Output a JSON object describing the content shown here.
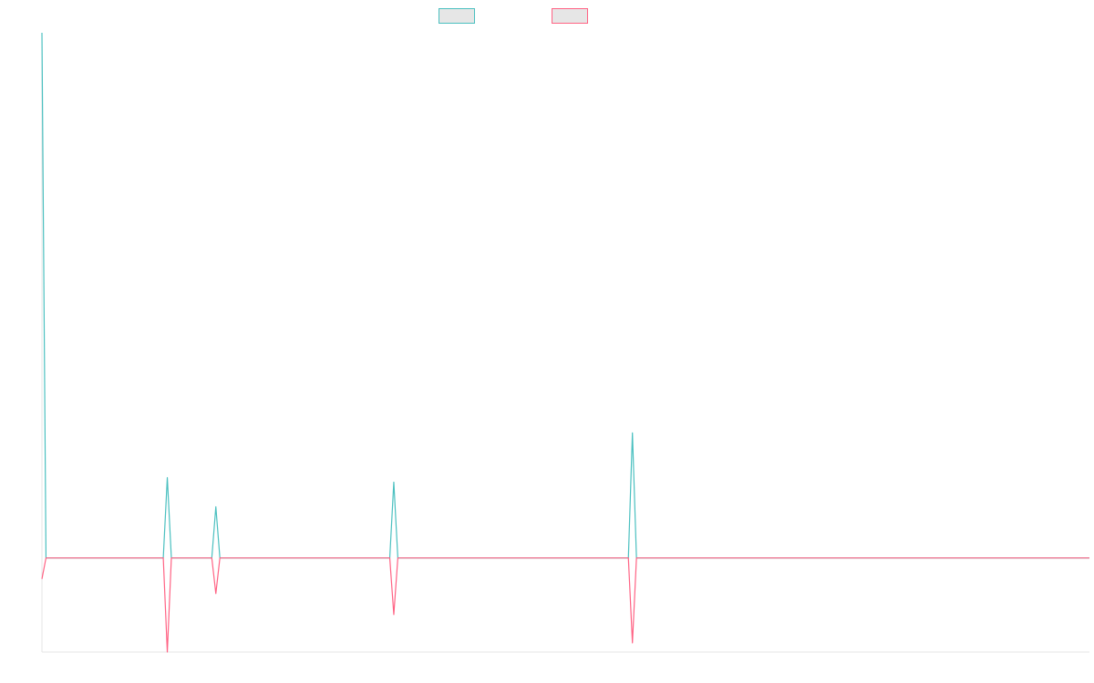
{
  "chart_data": {
    "type": "line",
    "title": "",
    "xlabel": "",
    "ylabel": "",
    "x_count": 260,
    "ylim": [
      -103,
      575
    ],
    "grid": false,
    "legend_placement": "top",
    "series": [
      {
        "name": "",
        "color": "#4bc0c0",
        "fill": "#e6e6e6",
        "points": [
          {
            "x": 0,
            "y": 575
          },
          {
            "x": 1,
            "y": 0
          },
          {
            "x": 30,
            "y": 0
          },
          {
            "x": 31,
            "y": 88
          },
          {
            "x": 32,
            "y": 0
          },
          {
            "x": 42,
            "y": 0
          },
          {
            "x": 43,
            "y": 56
          },
          {
            "x": 44,
            "y": 0
          },
          {
            "x": 86,
            "y": 0
          },
          {
            "x": 87,
            "y": 83
          },
          {
            "x": 88,
            "y": 0
          },
          {
            "x": 145,
            "y": 0
          },
          {
            "x": 146,
            "y": 137
          },
          {
            "x": 147,
            "y": 0
          },
          {
            "x": 259,
            "y": 0
          }
        ]
      },
      {
        "name": "",
        "color": "#ff6384",
        "fill": "#e6e6e6",
        "points": [
          {
            "x": 0,
            "y": -23
          },
          {
            "x": 1,
            "y": 0
          },
          {
            "x": 30,
            "y": 0
          },
          {
            "x": 31,
            "y": -103
          },
          {
            "x": 32,
            "y": 0
          },
          {
            "x": 42,
            "y": 0
          },
          {
            "x": 43,
            "y": -39
          },
          {
            "x": 44,
            "y": 0
          },
          {
            "x": 86,
            "y": 0
          },
          {
            "x": 87,
            "y": -62
          },
          {
            "x": 88,
            "y": 0
          },
          {
            "x": 145,
            "y": 0
          },
          {
            "x": 146,
            "y": -93
          },
          {
            "x": 147,
            "y": 0
          },
          {
            "x": 259,
            "y": 0
          }
        ]
      }
    ]
  }
}
